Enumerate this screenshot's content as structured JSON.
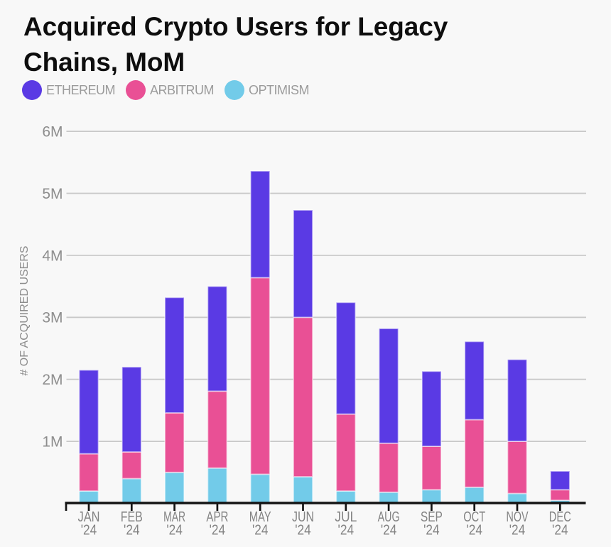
{
  "title": "Acquired Crypto Users for Legacy Chains, MoM",
  "chart_data": {
    "type": "bar",
    "stacked": true,
    "title": "Acquired Crypto Users for Legacy Chains, MoM",
    "ylabel": "# OF ACQUIRED USERS",
    "xlabel": "",
    "ylim": [
      0,
      6000000
    ],
    "ytick_labels": [
      "1M",
      "2M",
      "3M",
      "4M",
      "5M",
      "6M"
    ],
    "grid": "horizontal",
    "legend_position": "top",
    "categories": [
      "JAN",
      "FEB",
      "MAR",
      "APR",
      "MAY",
      "JUN",
      "JUL",
      "AUG",
      "SEP",
      "OCT",
      "NOV",
      "DEC"
    ],
    "year_label": "'24",
    "series": [
      {
        "name": "ETHEREUM",
        "color": "#5a3ae4",
        "values": [
          1350000,
          1370000,
          1860000,
          1690000,
          1720000,
          1730000,
          1800000,
          1850000,
          1210000,
          1260000,
          1320000,
          300000
        ]
      },
      {
        "name": "ARBITRUM",
        "color": "#e95095",
        "values": [
          600000,
          430000,
          960000,
          1240000,
          3170000,
          2570000,
          1240000,
          790000,
          700000,
          1090000,
          840000,
          170000
        ]
      },
      {
        "name": "OPTIMISM",
        "color": "#72cbe9",
        "values": [
          200000,
          400000,
          500000,
          570000,
          470000,
          430000,
          200000,
          180000,
          220000,
          260000,
          160000,
          50000
        ]
      }
    ],
    "stack_order_bottom_to_top": [
      "OPTIMISM",
      "ARBITRUM",
      "ETHEREUM"
    ]
  }
}
